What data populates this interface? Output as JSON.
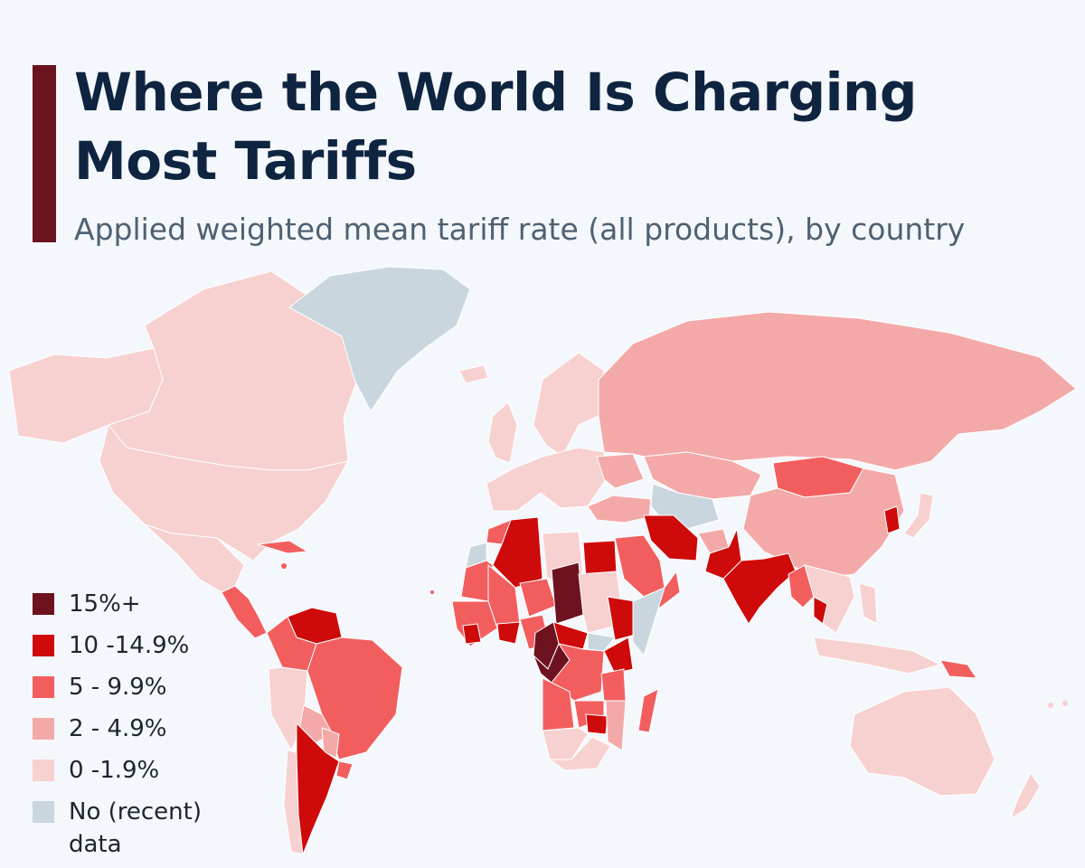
{
  "header": {
    "title": "Where the World Is Charging Most Tariffs",
    "subtitle": "Applied weighted mean tariff rate (all products), by country"
  },
  "colors": {
    "accent": "#6b1420",
    "cat_15_plus": "#6e1220",
    "cat_10_14_9": "#cf0a0a",
    "cat_5_9_9": "#f25e5e",
    "cat_2_4_9": "#f4a9a9",
    "cat_0_1_9": "#f7d0d0",
    "no_data": "#c9d6de",
    "background": "#f4f7fb",
    "border": "#ffffff"
  },
  "legend": {
    "items": [
      {
        "key": "cat_15_plus",
        "label": "15%+"
      },
      {
        "key": "cat_10_14_9",
        "label": "10 -14.9%"
      },
      {
        "key": "cat_5_9_9",
        "label": "5 - 9.9%"
      },
      {
        "key": "cat_2_4_9",
        "label": "2 - 4.9%"
      },
      {
        "key": "cat_0_1_9",
        "label": "0 -1.9%"
      },
      {
        "key": "no_data",
        "label": "No (recent) data"
      }
    ]
  },
  "map": {
    "regions": [
      {
        "name": "canada",
        "category": "cat_0_1_9"
      },
      {
        "name": "alaska",
        "category": "cat_0_1_9"
      },
      {
        "name": "greenland",
        "category": "no_data"
      },
      {
        "name": "united-states",
        "category": "cat_0_1_9"
      },
      {
        "name": "mexico",
        "category": "cat_0_1_9"
      },
      {
        "name": "central-america",
        "category": "cat_5_9_9"
      },
      {
        "name": "cuba",
        "category": "cat_5_9_9"
      },
      {
        "name": "venezuela",
        "category": "cat_10_14_9"
      },
      {
        "name": "colombia",
        "category": "cat_5_9_9"
      },
      {
        "name": "peru",
        "category": "cat_0_1_9"
      },
      {
        "name": "brazil",
        "category": "cat_5_9_9"
      },
      {
        "name": "bolivia",
        "category": "cat_2_4_9"
      },
      {
        "name": "paraguay",
        "category": "cat_2_4_9"
      },
      {
        "name": "chile",
        "category": "cat_0_1_9"
      },
      {
        "name": "argentina",
        "category": "cat_10_14_9"
      },
      {
        "name": "uruguay",
        "category": "cat_5_9_9"
      },
      {
        "name": "iceland",
        "category": "cat_0_1_9"
      },
      {
        "name": "uk-ireland",
        "category": "cat_0_1_9"
      },
      {
        "name": "scandinavia",
        "category": "cat_0_1_9"
      },
      {
        "name": "europe",
        "category": "cat_0_1_9"
      },
      {
        "name": "ukraine",
        "category": "cat_2_4_9"
      },
      {
        "name": "turkey",
        "category": "cat_2_4_9"
      },
      {
        "name": "russia",
        "category": "cat_2_4_9"
      },
      {
        "name": "kazakhstan",
        "category": "cat_2_4_9"
      },
      {
        "name": "central-asia",
        "category": "no_data"
      },
      {
        "name": "mongolia",
        "category": "cat_5_9_9"
      },
      {
        "name": "china",
        "category": "cat_2_4_9"
      },
      {
        "name": "korea",
        "category": "cat_10_14_9"
      },
      {
        "name": "japan",
        "category": "cat_0_1_9"
      },
      {
        "name": "iran",
        "category": "cat_10_14_9"
      },
      {
        "name": "afghanistan",
        "category": "cat_2_4_9"
      },
      {
        "name": "pakistan",
        "category": "cat_10_14_9"
      },
      {
        "name": "india",
        "category": "cat_10_14_9"
      },
      {
        "name": "saudi-arabia",
        "category": "cat_5_9_9"
      },
      {
        "name": "yemen-oman",
        "category": "cat_5_9_9"
      },
      {
        "name": "myanmar",
        "category": "cat_5_9_9"
      },
      {
        "name": "thailand",
        "category": "cat_10_14_9"
      },
      {
        "name": "southeast-asia",
        "category": "cat_0_1_9"
      },
      {
        "name": "indonesia",
        "category": "cat_0_1_9"
      },
      {
        "name": "philippines",
        "category": "cat_0_1_9"
      },
      {
        "name": "papua-new-guinea",
        "category": "cat_5_9_9"
      },
      {
        "name": "australia",
        "category": "cat_0_1_9"
      },
      {
        "name": "new-zealand",
        "category": "cat_0_1_9"
      },
      {
        "name": "morocco",
        "category": "cat_5_9_9"
      },
      {
        "name": "western-sahara",
        "category": "no_data"
      },
      {
        "name": "algeria",
        "category": "cat_10_14_9"
      },
      {
        "name": "libya",
        "category": "cat_0_1_9"
      },
      {
        "name": "egypt",
        "category": "cat_10_14_9"
      },
      {
        "name": "mauritania",
        "category": "cat_5_9_9"
      },
      {
        "name": "mali",
        "category": "cat_5_9_9"
      },
      {
        "name": "niger",
        "category": "cat_5_9_9"
      },
      {
        "name": "chad",
        "category": "cat_15_plus"
      },
      {
        "name": "sudan",
        "category": "cat_0_1_9"
      },
      {
        "name": "west-africa",
        "category": "cat_5_9_9"
      },
      {
        "name": "guinea",
        "category": "cat_10_14_9"
      },
      {
        "name": "ghana",
        "category": "cat_10_14_9"
      },
      {
        "name": "nigeria",
        "category": "cat_5_9_9"
      },
      {
        "name": "central-african-rep",
        "category": "cat_10_14_9"
      },
      {
        "name": "ethiopia",
        "category": "cat_10_14_9"
      },
      {
        "name": "somalia",
        "category": "no_data"
      },
      {
        "name": "south-sudan",
        "category": "no_data"
      },
      {
        "name": "cameroon",
        "category": "cat_15_plus"
      },
      {
        "name": "gabon-congo",
        "category": "cat_15_plus"
      },
      {
        "name": "dr-congo",
        "category": "cat_5_9_9"
      },
      {
        "name": "kenya",
        "category": "cat_10_14_9"
      },
      {
        "name": "tanzania",
        "category": "cat_5_9_9"
      },
      {
        "name": "angola",
        "category": "cat_5_9_9"
      },
      {
        "name": "zambia",
        "category": "cat_5_9_9"
      },
      {
        "name": "zimbabwe",
        "category": "cat_10_14_9"
      },
      {
        "name": "mozambique",
        "category": "cat_2_4_9"
      },
      {
        "name": "namibia-botswana",
        "category": "cat_0_1_9"
      },
      {
        "name": "south-africa",
        "category": "cat_0_1_9"
      },
      {
        "name": "madagascar",
        "category": "cat_5_9_9"
      }
    ]
  }
}
